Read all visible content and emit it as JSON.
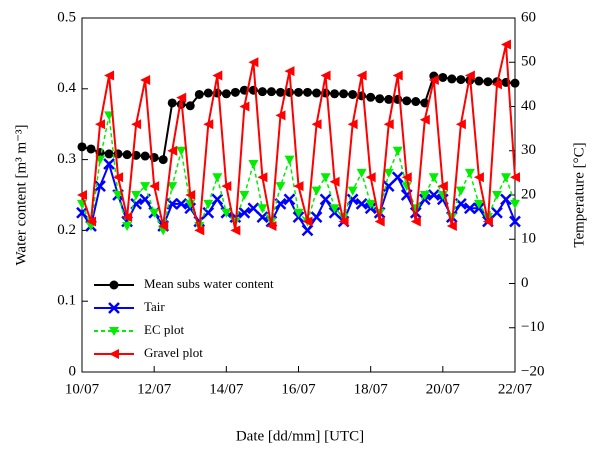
{
  "chart_data": {
    "type": "line",
    "xlabel": "Date [dd/mm] [UTC]",
    "ylabel": "Water content [m³ m⁻³]",
    "y2label": "Temperature [°C]",
    "x": [
      10,
      10.25,
      10.5,
      10.75,
      11,
      11.25,
      11.5,
      11.75,
      12,
      12.25,
      12.5,
      12.75,
      13,
      13.25,
      13.5,
      13.75,
      14,
      14.25,
      14.5,
      14.75,
      15,
      15.25,
      15.5,
      15.75,
      16,
      16.25,
      16.5,
      16.75,
      17,
      17.25,
      17.5,
      17.75,
      18,
      18.25,
      18.5,
      18.75,
      19,
      19.25,
      19.5,
      19.75,
      20,
      20.25,
      20.5,
      20.75,
      21,
      21.25,
      21.5,
      21.75,
      22
    ],
    "xlim": [
      10,
      22
    ],
    "xticks": [
      {
        "value": 10,
        "label": "10/07"
      },
      {
        "value": 12,
        "label": "12/07"
      },
      {
        "value": 14,
        "label": "14/07"
      },
      {
        "value": 16,
        "label": "16/07"
      },
      {
        "value": 18,
        "label": "18/07"
      },
      {
        "value": 20,
        "label": "20/07"
      },
      {
        "value": 22,
        "label": "22/07"
      }
    ],
    "ylim": [
      0,
      0.5
    ],
    "yticks": [
      0,
      0.1,
      0.2,
      0.3,
      0.4,
      0.5
    ],
    "y2lim": [
      -20,
      60
    ],
    "y2ticks": [
      {
        "value": -20,
        "label": "−20"
      },
      {
        "value": -10,
        "label": "−10"
      },
      0,
      10,
      20,
      30,
      40,
      50,
      60
    ],
    "legend": "lower left",
    "series": [
      {
        "name": "Mean subs water content",
        "color": "#000000",
        "marker": "circle",
        "dash": false,
        "values": [
          0.318,
          0.315,
          0.31,
          0.308,
          0.308,
          0.307,
          0.306,
          0.305,
          0.303,
          0.3,
          0.38,
          0.378,
          0.376,
          0.392,
          0.394,
          0.394,
          0.393,
          0.395,
          0.398,
          0.398,
          0.396,
          0.396,
          0.395,
          0.395,
          0.395,
          0.395,
          0.394,
          0.394,
          0.393,
          0.393,
          0.392,
          0.39,
          0.388,
          0.386,
          0.385,
          0.385,
          0.383,
          0.382,
          0.38,
          0.418,
          0.416,
          0.414,
          0.413,
          0.412,
          0.411,
          0.41,
          0.41,
          0.409,
          0.408
        ]
      },
      {
        "name": "Tair",
        "color": "#0000ff",
        "marker": "x",
        "dash": false,
        "axis": "y2",
        "values": [
          16,
          13,
          22,
          27,
          20,
          14,
          18,
          19,
          16,
          13,
          18,
          18,
          17,
          14,
          16,
          19,
          16,
          15,
          16,
          17,
          15,
          14,
          18,
          19,
          15,
          12,
          15,
          19,
          16,
          14,
          19,
          18,
          17,
          16,
          22,
          24,
          20,
          16,
          19,
          20,
          19,
          15,
          18,
          17,
          17,
          14,
          16,
          19,
          14
        ]
      },
      {
        "name": "EC plot",
        "color": "#00ee00",
        "marker": "triangle-down",
        "dash": true,
        "axis": "y2",
        "values": [
          18,
          13,
          28,
          38,
          20,
          13,
          20,
          22,
          16,
          12,
          22,
          30,
          18,
          13,
          18,
          24,
          16,
          14,
          20,
          27,
          17,
          14,
          22,
          28,
          16,
          14,
          21,
          24,
          17,
          15,
          21,
          25,
          18,
          16,
          25,
          30,
          22,
          17,
          20,
          24,
          20,
          15,
          21,
          25,
          18,
          15,
          20,
          24,
          18
        ]
      },
      {
        "name": "Gravel plot",
        "color": "#ff0000",
        "marker": "triangle-left",
        "dash": false,
        "axis": "y2",
        "values": [
          20,
          14,
          36,
          47,
          24,
          15,
          36,
          46,
          22,
          13,
          30,
          42,
          20,
          12,
          36,
          47,
          22,
          12,
          40,
          50,
          24,
          13,
          38,
          48,
          22,
          14,
          36,
          47,
          23,
          14,
          36,
          47,
          24,
          14,
          36,
          47,
          24,
          14,
          37,
          46,
          22,
          13,
          36,
          47,
          24,
          14,
          45,
          54,
          24
        ]
      }
    ]
  }
}
